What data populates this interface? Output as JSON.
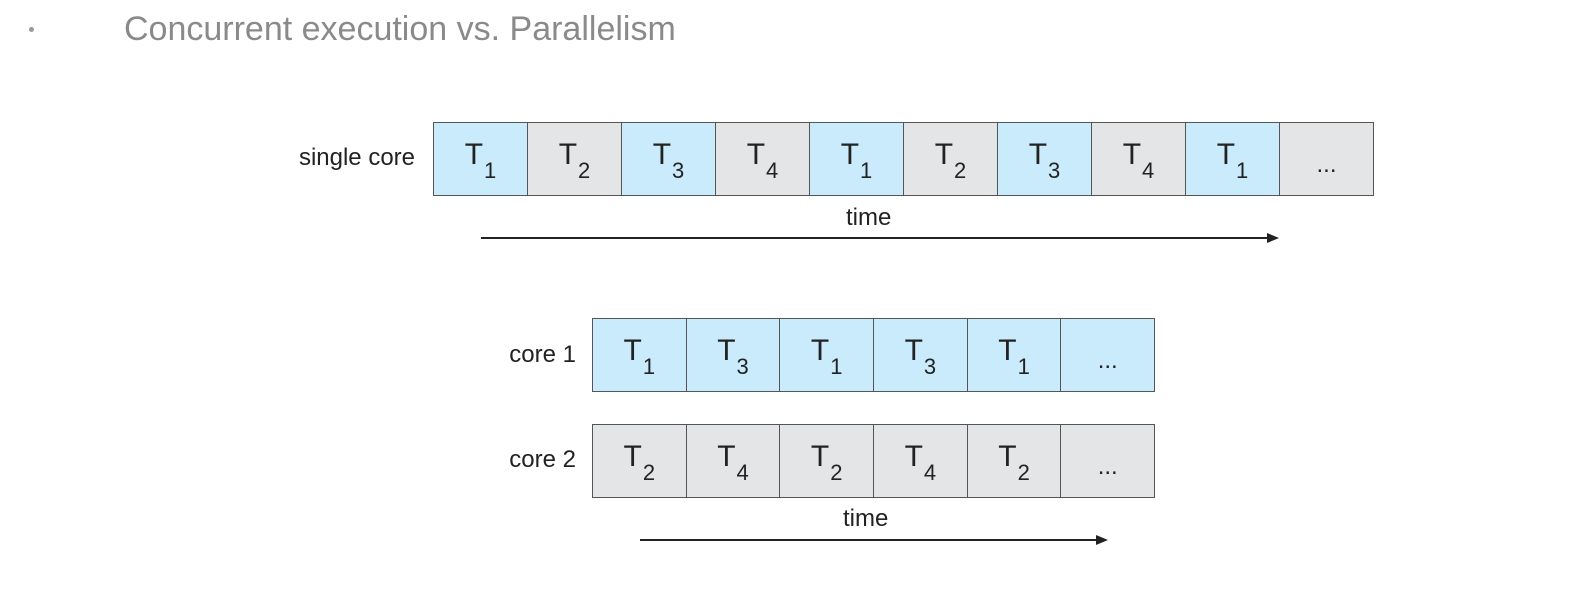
{
  "heading": "Concurrent execution vs. Parallelism",
  "single_core": {
    "label": "single core",
    "cells": [
      {
        "base": "T",
        "sub": "1",
        "color": "blue"
      },
      {
        "base": "T",
        "sub": "2",
        "color": "gray"
      },
      {
        "base": "T",
        "sub": "3",
        "color": "blue"
      },
      {
        "base": "T",
        "sub": "4",
        "color": "gray"
      },
      {
        "base": "T",
        "sub": "1",
        "color": "blue"
      },
      {
        "base": "T",
        "sub": "2",
        "color": "gray"
      },
      {
        "base": "T",
        "sub": "3",
        "color": "blue"
      },
      {
        "base": "T",
        "sub": "4",
        "color": "gray"
      },
      {
        "base": "T",
        "sub": "1",
        "color": "blue"
      },
      {
        "base": "...",
        "sub": "",
        "color": "gray"
      }
    ],
    "time_label": "time"
  },
  "core1": {
    "label": "core 1",
    "cells": [
      {
        "base": "T",
        "sub": "1",
        "color": "blue"
      },
      {
        "base": "T",
        "sub": "3",
        "color": "blue"
      },
      {
        "base": "T",
        "sub": "1",
        "color": "blue"
      },
      {
        "base": "T",
        "sub": "3",
        "color": "blue"
      },
      {
        "base": "T",
        "sub": "1",
        "color": "blue"
      },
      {
        "base": "...",
        "sub": "",
        "color": "blue"
      }
    ]
  },
  "core2": {
    "label": "core 2",
    "cells": [
      {
        "base": "T",
        "sub": "2",
        "color": "gray"
      },
      {
        "base": "T",
        "sub": "4",
        "color": "gray"
      },
      {
        "base": "T",
        "sub": "2",
        "color": "gray"
      },
      {
        "base": "T",
        "sub": "4",
        "color": "gray"
      },
      {
        "base": "T",
        "sub": "2",
        "color": "gray"
      },
      {
        "base": "...",
        "sub": "",
        "color": "gray"
      }
    ],
    "time_label": "time"
  },
  "colors": {
    "blue": "#c9ebfb",
    "gray": "#e4e5e7",
    "heading": "#8a8a8a"
  }
}
